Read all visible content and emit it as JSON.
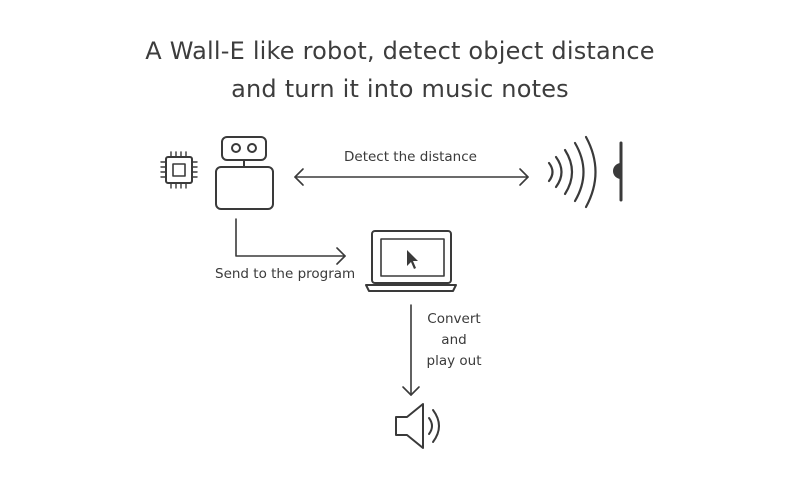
{
  "title": {
    "line1": "A Wall-E like robot, detect object distance",
    "line2": "and turn it into music notes"
  },
  "labels": {
    "detect": "Detect the distance",
    "send": "Send to the program",
    "convert": [
      "Convert",
      "and",
      "play out"
    ]
  },
  "icons": [
    "chip-icon",
    "robot-icon",
    "sound-wave-icon",
    "laptop-icon",
    "cursor-icon",
    "speaker-icon"
  ],
  "colors": {
    "stroke": "#3a3a3a",
    "background": "#ffffff"
  }
}
